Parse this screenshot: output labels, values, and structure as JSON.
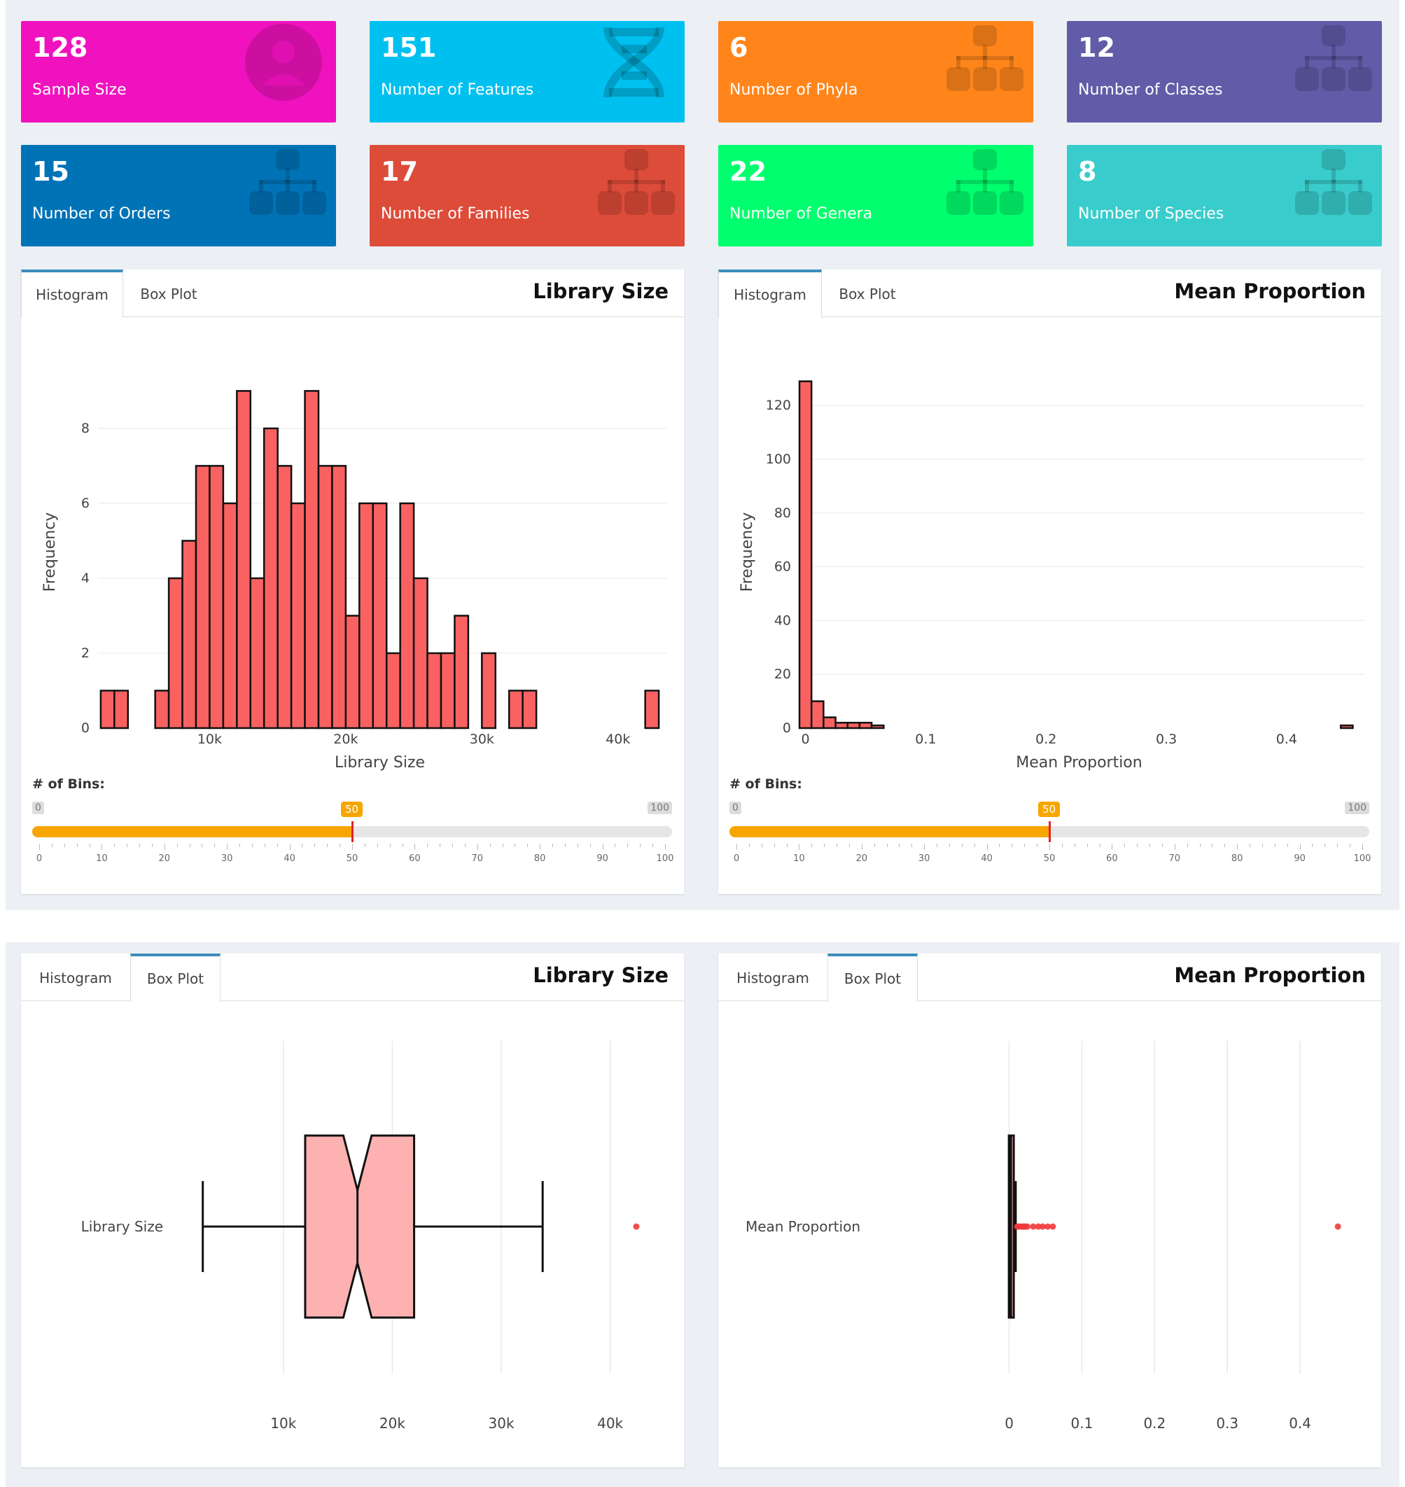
{
  "value_boxes": [
    {
      "value": "128",
      "label": "Sample Size",
      "color": "#f012be",
      "icon": "user-icon"
    },
    {
      "value": "151",
      "label": "Number of Features",
      "color": "#00c0ef",
      "icon": "dna-icon"
    },
    {
      "value": "6",
      "label": "Number of Phyla",
      "color": "#ff851b",
      "icon": "sitemap-icon"
    },
    {
      "value": "12",
      "label": "Number of Classes",
      "color": "#605ca8",
      "icon": "sitemap-icon"
    },
    {
      "value": "15",
      "label": "Number of Orders",
      "color": "#0073b7",
      "icon": "sitemap-icon"
    },
    {
      "value": "17",
      "label": "Number of Families",
      "color": "#dd4b39",
      "icon": "sitemap-icon"
    },
    {
      "value": "22",
      "label": "Number of Genera",
      "color": "#00ff6e",
      "icon": "sitemap-icon"
    },
    {
      "value": "8",
      "label": "Number of Species",
      "color": "#39cccc",
      "icon": "sitemap-icon"
    }
  ],
  "cards": {
    "lib_hist": {
      "tab1": "Histogram",
      "tab2": "Box Plot",
      "title": "Library Size",
      "bins_label": "# of Bins:",
      "slider_min": "0",
      "slider_max": "100",
      "slider_value": 50
    },
    "mp_hist": {
      "tab1": "Histogram",
      "tab2": "Box Plot",
      "title": "Mean Proportion",
      "bins_label": "# of Bins:",
      "slider_min": "0",
      "slider_max": "100",
      "slider_value": 50
    },
    "lib_box": {
      "tab1": "Histogram",
      "tab2": "Box Plot",
      "title": "Library Size"
    },
    "mp_box": {
      "tab1": "Histogram",
      "tab2": "Box Plot",
      "title": "Mean Proportion"
    }
  },
  "slider_ticks": [
    "0",
    "10",
    "20",
    "30",
    "40",
    "50",
    "60",
    "70",
    "80",
    "90",
    "100"
  ],
  "chart_data": [
    {
      "type": "bar",
      "subtype": "histogram",
      "title": "Library Size",
      "xlabel": "Library Size",
      "ylabel": "Frequency",
      "x_ticks": [
        "10k",
        "20k",
        "30k",
        "40k"
      ],
      "x_tick_values": [
        10000,
        20000,
        30000,
        40000
      ],
      "y_ticks": [
        "0",
        "2",
        "4",
        "6",
        "8"
      ],
      "y_tick_values": [
        0,
        2,
        4,
        6,
        8
      ],
      "xlim": [
        1800,
        43200
      ],
      "ylim": [
        0,
        9.4
      ],
      "bin_width": 1000,
      "bins": [
        {
          "x": 2000,
          "count": 1
        },
        {
          "x": 3000,
          "count": 1
        },
        {
          "x": 6000,
          "count": 1
        },
        {
          "x": 7000,
          "count": 4
        },
        {
          "x": 8000,
          "count": 5
        },
        {
          "x": 9000,
          "count": 7
        },
        {
          "x": 10000,
          "count": 7
        },
        {
          "x": 11000,
          "count": 6
        },
        {
          "x": 12000,
          "count": 9
        },
        {
          "x": 13000,
          "count": 4
        },
        {
          "x": 14000,
          "count": 8
        },
        {
          "x": 15000,
          "count": 7
        },
        {
          "x": 16000,
          "count": 6
        },
        {
          "x": 17000,
          "count": 9
        },
        {
          "x": 18000,
          "count": 7
        },
        {
          "x": 19000,
          "count": 7
        },
        {
          "x": 20000,
          "count": 3
        },
        {
          "x": 21000,
          "count": 6
        },
        {
          "x": 22000,
          "count": 6
        },
        {
          "x": 23000,
          "count": 2
        },
        {
          "x": 24000,
          "count": 6
        },
        {
          "x": 25000,
          "count": 4
        },
        {
          "x": 26000,
          "count": 2
        },
        {
          "x": 27000,
          "count": 2
        },
        {
          "x": 28000,
          "count": 3
        },
        {
          "x": 30000,
          "count": 2
        },
        {
          "x": 32000,
          "count": 1
        },
        {
          "x": 33000,
          "count": 1
        },
        {
          "x": 42000,
          "count": 1
        }
      ]
    },
    {
      "type": "bar",
      "subtype": "histogram",
      "title": "Mean Proportion",
      "xlabel": "Mean Proportion",
      "ylabel": "Frequency",
      "x_ticks": [
        "0",
        "0.1",
        "0.2",
        "0.3",
        "0.4"
      ],
      "x_tick_values": [
        0,
        0.1,
        0.2,
        0.3,
        0.4
      ],
      "y_ticks": [
        "0",
        "20",
        "40",
        "60",
        "80",
        "100",
        "120"
      ],
      "y_tick_values": [
        0,
        20,
        40,
        60,
        80,
        100,
        120
      ],
      "xlim": [
        -0.005,
        0.46
      ],
      "ylim": [
        0,
        131
      ],
      "bin_width": 0.01,
      "bins": [
        {
          "x": -0.005,
          "count": 129
        },
        {
          "x": 0.005,
          "count": 10
        },
        {
          "x": 0.015,
          "count": 4
        },
        {
          "x": 0.025,
          "count": 2
        },
        {
          "x": 0.035,
          "count": 2
        },
        {
          "x": 0.045,
          "count": 2
        },
        {
          "x": 0.055,
          "count": 1
        },
        {
          "x": 0.445,
          "count": 1
        }
      ]
    },
    {
      "type": "box",
      "title": "Library Size",
      "category": "Library Size",
      "x_ticks": [
        "10k",
        "20k",
        "30k",
        "40k"
      ],
      "x_tick_values": [
        10000,
        20000,
        30000,
        40000
      ],
      "xlim": [
        -400,
        46000
      ],
      "whisker_low": 2600,
      "q1": 12000,
      "notch_low": 15500,
      "median": 16800,
      "notch_high": 18100,
      "q3": 22000,
      "whisker_high": 33800,
      "outliers": [
        42400
      ]
    },
    {
      "type": "box",
      "title": "Mean Proportion",
      "category": "Mean Proportion",
      "x_ticks": [
        "0",
        "0.1",
        "0.2",
        "0.3",
        "0.4"
      ],
      "x_tick_values": [
        0,
        0.1,
        0.2,
        0.3,
        0.4
      ],
      "xlim": [
        -0.195,
        0.5
      ],
      "whisker_low": 0.0,
      "q1": 0.0015,
      "median": 0.002,
      "q3": 0.004,
      "whisker_high": 0.009,
      "outliers": [
        0.011,
        0.013,
        0.015,
        0.018,
        0.02,
        0.022,
        0.025,
        0.033,
        0.04,
        0.046,
        0.053,
        0.06,
        0.452
      ]
    }
  ]
}
